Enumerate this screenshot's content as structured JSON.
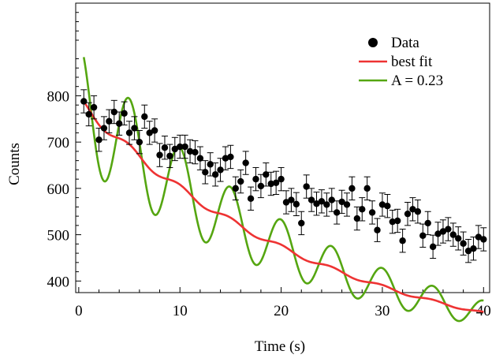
{
  "chart_data": {
    "type": "scatter",
    "title": "",
    "xlabel": "Time (s)",
    "ylabel": "Counts",
    "xlim": [
      -0.3,
      40.6
    ],
    "ylim": [
      375,
      1000
    ],
    "xticks": [
      0,
      10,
      20,
      30,
      40
    ],
    "yticks": [
      400,
      500,
      600,
      700,
      800
    ],
    "grid": false,
    "legend_position": "top-right",
    "series": [
      {
        "name": "Data",
        "kind": "points-with-error-bars",
        "color": "#000000",
        "x": [
          0.5,
          1.0,
          1.5,
          2.0,
          2.5,
          3.0,
          3.5,
          4.0,
          4.5,
          5.0,
          5.5,
          6.0,
          6.5,
          7.0,
          7.5,
          8.0,
          8.5,
          9.0,
          9.5,
          10.0,
          10.5,
          11.0,
          11.5,
          12.0,
          12.5,
          13.0,
          13.5,
          14.0,
          14.5,
          15.0,
          15.5,
          16.0,
          16.5,
          17.0,
          17.5,
          18.0,
          18.5,
          19.0,
          19.5,
          20.0,
          20.5,
          21.0,
          21.5,
          22.0,
          22.5,
          23.0,
          23.5,
          24.0,
          24.5,
          25.0,
          25.5,
          26.0,
          26.5,
          27.0,
          27.5,
          28.0,
          28.5,
          29.0,
          29.5,
          30.0,
          30.5,
          31.0,
          31.5,
          32.0,
          32.5,
          33.0,
          33.5,
          34.0,
          34.5,
          35.0,
          35.5,
          36.0,
          36.5,
          37.0,
          37.5,
          38.0,
          38.5,
          39.0,
          39.5,
          40.0
        ],
        "y": [
          788,
          760,
          775,
          705,
          730,
          745,
          765,
          740,
          762,
          720,
          730,
          700,
          755,
          720,
          725,
          672,
          688,
          670,
          685,
          690,
          690,
          680,
          678,
          665,
          635,
          652,
          630,
          640,
          665,
          668,
          600,
          615,
          655,
          578,
          620,
          605,
          630,
          610,
          612,
          620,
          570,
          575,
          566,
          525,
          604,
          575,
          567,
          572,
          565,
          575,
          548,
          571,
          565,
          600,
          535,
          555,
          600,
          548,
          510,
          565,
          562,
          528,
          530,
          487,
          545,
          555,
          550,
          498,
          525,
          474,
          502,
          507,
          512,
          500,
          492,
          481,
          465,
          470,
          495,
          490
        ],
        "yerr": 25
      },
      {
        "name": "best fit",
        "kind": "line",
        "color": "#ee3333",
        "amplitude": 0.02
      },
      {
        "name": "A = 0.23",
        "kind": "line",
        "color": "#55a611",
        "amplitude": 0.23
      }
    ],
    "model": {
      "offset": 215,
      "base": 575,
      "decay_time": 25,
      "period": 5
    }
  }
}
